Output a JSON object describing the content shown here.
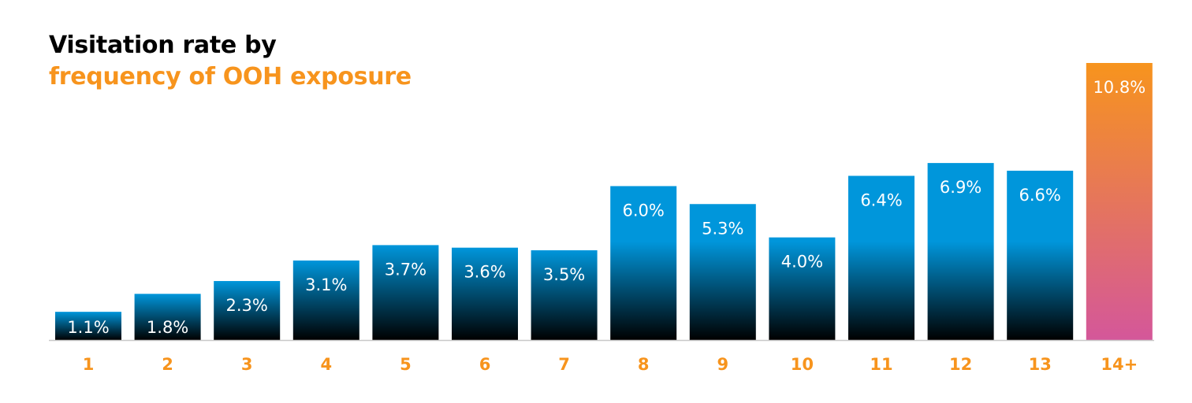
{
  "title": {
    "line1": "Visitation rate by",
    "line2": "frequency of OOH exposure"
  },
  "colors": {
    "bar_top": "#0096db",
    "bar_bottom": "#000000",
    "highlight_top": "#f7941d",
    "highlight_bottom": "#d4579a",
    "category_label": "#f7941d",
    "baseline": "#c8c8c8"
  },
  "chart_data": {
    "type": "bar",
    "categories": [
      "1",
      "2",
      "3",
      "4",
      "5",
      "6",
      "7",
      "8",
      "9",
      "10",
      "11",
      "12",
      "13",
      "14+"
    ],
    "values": [
      1.1,
      1.8,
      2.3,
      3.1,
      3.7,
      3.6,
      3.5,
      6.0,
      5.3,
      4.0,
      6.4,
      6.9,
      6.6,
      10.8
    ],
    "labels": [
      "1.1%",
      "1.8%",
      "2.3%",
      "3.1%",
      "3.7%",
      "3.6%",
      "3.5%",
      "6.0%",
      "5.3%",
      "4.0%",
      "6.4%",
      "6.9%",
      "6.6%",
      "10.8%"
    ],
    "highlight_category": "14+",
    "unit": "%",
    "ylim": [
      0,
      10.8
    ],
    "grid": false,
    "legend": "none"
  }
}
